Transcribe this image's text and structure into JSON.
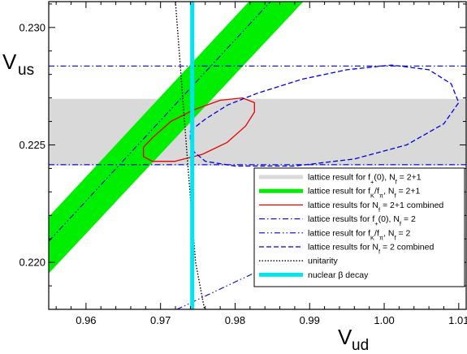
{
  "chart_data": {
    "type": "scatter",
    "title": "",
    "xlabel_main": "V",
    "xlabel_sub": "ud",
    "ylabel_main": "V",
    "ylabel_sub": "us",
    "xlim": [
      0.955,
      1.011
    ],
    "ylim": [
      0.218,
      0.2311
    ],
    "x_ticks": [
      0.96,
      0.97,
      0.98,
      0.99,
      1.0,
      1.01
    ],
    "x_tick_labels": [
      "0.96",
      "0.97",
      "0.98",
      "0.99",
      "1.00",
      "1.01"
    ],
    "y_ticks": [
      0.22,
      0.225,
      0.23
    ],
    "y_tick_labels": [
      "0.220",
      "0.225",
      "0.230"
    ],
    "grid": false,
    "legend_position": "bottom-right",
    "colors": {
      "gray_band": "#d9d9d9",
      "green_band": "#00ee00",
      "red_ellipse": "#e60000",
      "blue": "#0000dd",
      "unitarity": "#000000",
      "nuclear": "#00e5ee"
    },
    "series": [
      {
        "name": "Lattice result for f+(0), Nf = 2+1",
        "label_parts": [
          "lattice result for f",
          "+",
          "(0), N",
          "f",
          " = 2+1"
        ],
        "kind": "hband",
        "y_range": [
          0.22412,
          0.22696
        ]
      },
      {
        "name": "Lattice result for fK/fπ, Nf = 2+1",
        "label_parts": [
          "lattice result for f",
          "K",
          "/f",
          "π",
          ", N",
          "f",
          " = 2+1"
        ],
        "kind": "linear_band",
        "lower": [
          [
            0.955,
            0.21953
          ],
          [
            1.011,
            0.2385
          ]
        ],
        "upper": [
          [
            0.955,
            0.22194
          ],
          [
            1.011,
            0.24104
          ]
        ]
      },
      {
        "name": "Lattice results for Nf = 2+1 combined",
        "label_parts": [
          "lattice results for N",
          "f",
          " = 2+1 combined"
        ],
        "kind": "ellipse",
        "points": [
          [
            0.9677,
            0.2249
          ],
          [
            0.9689,
            0.2253
          ],
          [
            0.9714,
            0.226
          ],
          [
            0.9745,
            0.2265
          ],
          [
            0.978,
            0.2269
          ],
          [
            0.981,
            0.227
          ],
          [
            0.9826,
            0.2268
          ],
          [
            0.9826,
            0.2264
          ],
          [
            0.9814,
            0.2258
          ],
          [
            0.9789,
            0.2251
          ],
          [
            0.9756,
            0.2246
          ],
          [
            0.9719,
            0.2243
          ],
          [
            0.9689,
            0.2243
          ],
          [
            0.9677,
            0.2245
          ],
          [
            0.9677,
            0.2249
          ]
        ]
      },
      {
        "name": "Lattice results for f+(0), Nf = 2",
        "label_parts": [
          "lattice results for f",
          "+",
          "(0), N",
          "f",
          " = 2"
        ],
        "kind": "hlines",
        "y_values": [
          0.22416,
          0.22836
        ]
      },
      {
        "name": "Lattice result for fK/fπ, Nf = 2",
        "label_parts": [
          "lattice result for f",
          "K",
          "/f",
          "π",
          ", N",
          "f",
          " = 2"
        ],
        "kind": "lines",
        "lines": [
          [
            [
              0.955,
              0.2209
            ],
            [
              1.011,
              0.2401
            ]
          ],
          [
            [
              0.9722,
              0.218
            ],
            [
              0.997,
              0.2217
            ]
          ]
        ]
      },
      {
        "name": "Lattice results for Nf = 2 combined",
        "label_parts": [
          "lattice results for N",
          "f",
          " = 2 combined"
        ],
        "kind": "ellipse",
        "points": [
          [
            0.974,
            0.2256
          ],
          [
            0.976,
            0.2261
          ],
          [
            0.979,
            0.2267
          ],
          [
            0.983,
            0.2272
          ],
          [
            0.989,
            0.2278
          ],
          [
            0.995,
            0.2282
          ],
          [
            1.001,
            0.2284
          ],
          [
            1.006,
            0.2282
          ],
          [
            1.009,
            0.2276
          ],
          [
            1.01,
            0.2268
          ],
          [
            1.008,
            0.2259
          ],
          [
            1.003,
            0.225
          ],
          [
            0.996,
            0.2244
          ],
          [
            0.988,
            0.2241
          ],
          [
            0.98,
            0.2241
          ],
          [
            0.976,
            0.2243
          ],
          [
            0.9745,
            0.2247
          ],
          [
            0.974,
            0.2252
          ],
          [
            0.974,
            0.2256
          ]
        ]
      },
      {
        "name": "unitarity",
        "label_parts": [
          "unitarity"
        ],
        "kind": "curve",
        "points": [
          [
            0.972,
            0.2311
          ],
          [
            0.9737,
            0.224
          ],
          [
            0.9747,
            0.22
          ],
          [
            0.9759,
            0.218
          ]
        ]
      },
      {
        "name": "nuclear β decay",
        "label_parts": [
          "nuclear β decay"
        ],
        "kind": "vline",
        "x": 0.97425
      }
    ]
  }
}
